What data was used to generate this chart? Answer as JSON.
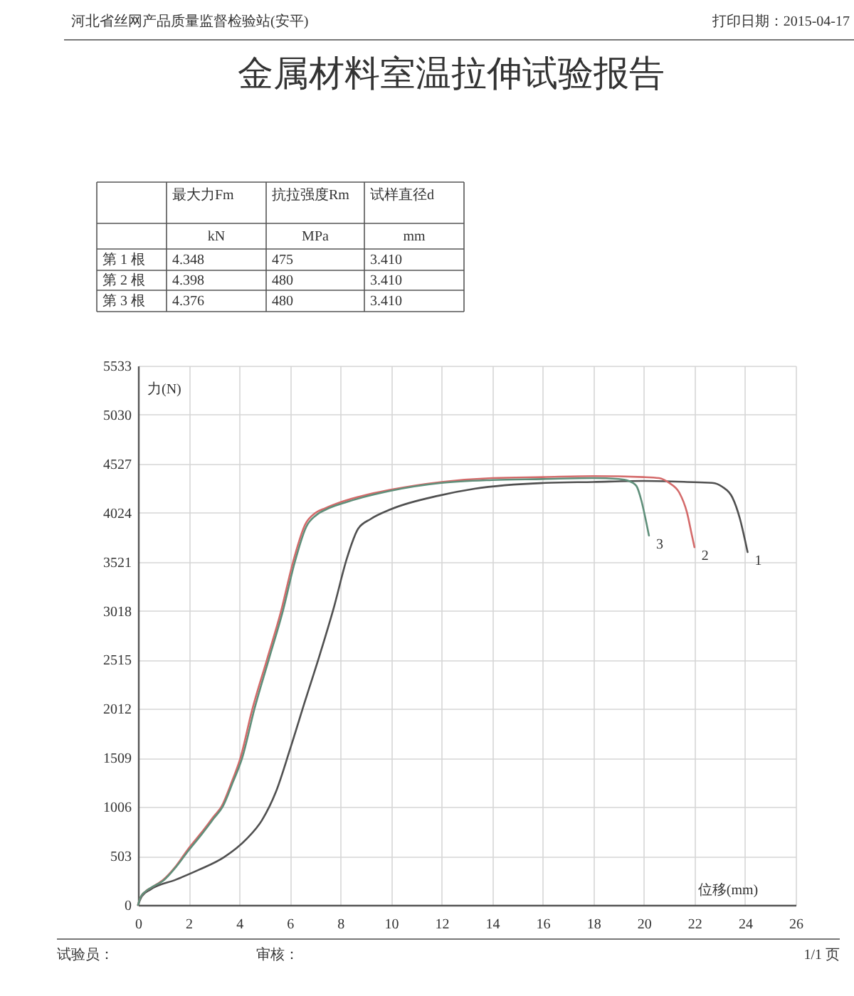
{
  "chart_data": {
    "type": "line",
    "title": "金属材料室温拉伸试验报告",
    "xlabel": "位移(mm)",
    "ylabel": "力(N)",
    "annotations": [
      "河北省丝网产品质量监督检验站(安平)",
      "打印日期：2015-04-17",
      "最大力Fm",
      "抗拉强度Rm",
      "试样直径d",
      "kN",
      "MPa",
      "mm",
      "第 1 根",
      "4.348",
      "475",
      "3.410",
      "第 2 根",
      "4.398",
      "480",
      "3.410",
      "第 3 根",
      "4.376",
      "480",
      "3.410",
      "试验员：",
      "审核：",
      "1/1 页"
    ],
    "xlim": [
      0,
      26
    ],
    "ylim": [
      0,
      5533
    ],
    "xticks": [
      0,
      2,
      4,
      6,
      8,
      10,
      12,
      14,
      16,
      18,
      20,
      22,
      24,
      26
    ],
    "yticks": [
      0,
      503,
      1006,
      1509,
      2012,
      2515,
      3018,
      3521,
      4024,
      4527,
      5030,
      5533
    ],
    "grid": true,
    "line_style": "solid",
    "series": [
      {
        "name": "1",
        "color": "#505050",
        "x": [
          0,
          0.15,
          0.5,
          1.5,
          2.4,
          3.4,
          4.3,
          4.9,
          5.45,
          6.0,
          6.6,
          7.2,
          7.75,
          8.25,
          8.7,
          9.2,
          10,
          11.9,
          13.3,
          16.1,
          18,
          20,
          21.7,
          22.7,
          23.1,
          23.5,
          23.8,
          24.0,
          24.1
        ],
        "values": [
          0,
          90,
          160,
          260,
          360,
          490,
          680,
          870,
          1160,
          1590,
          2090,
          2580,
          3060,
          3550,
          3860,
          3960,
          4060,
          4200,
          4270,
          4330,
          4340,
          4350,
          4340,
          4330,
          4290,
          4180,
          3960,
          3740,
          3620
        ]
      },
      {
        "name": "2",
        "color": "#d46a6a",
        "x": [
          0,
          0.1,
          0.3,
          0.6,
          1.0,
          1.5,
          2.0,
          2.5,
          3.0,
          3.3,
          3.7,
          4.05,
          4.5,
          5.1,
          5.65,
          6.13,
          6.6,
          7.0,
          7.4,
          8.1,
          10,
          12,
          14,
          16,
          18,
          20,
          20.6,
          21.0,
          21.4,
          21.7,
          21.9,
          22.0
        ],
        "values": [
          0,
          80,
          140,
          190,
          260,
          400,
          580,
          740,
          910,
          1010,
          1260,
          1510,
          1990,
          2520,
          3010,
          3520,
          3900,
          4020,
          4070,
          4140,
          4260,
          4340,
          4380,
          4390,
          4400,
          4390,
          4380,
          4330,
          4230,
          4030,
          3790,
          3670
        ]
      },
      {
        "name": "3",
        "color": "#5f8f7a",
        "x": [
          0,
          0.1,
          0.3,
          0.6,
          1.0,
          1.5,
          2.0,
          2.5,
          3.0,
          3.35,
          3.75,
          4.12,
          4.6,
          5.17,
          5.72,
          6.2,
          6.65,
          7.05,
          7.45,
          8.2,
          10,
          12,
          14,
          16,
          18,
          19.0,
          19.4,
          19.7,
          19.9,
          20.05,
          20.2
        ],
        "values": [
          0,
          80,
          140,
          190,
          250,
          390,
          560,
          720,
          890,
          1010,
          1260,
          1510,
          2010,
          2520,
          3010,
          3520,
          3880,
          4000,
          4060,
          4130,
          4250,
          4330,
          4360,
          4370,
          4380,
          4370,
          4350,
          4300,
          4150,
          3980,
          3790
        ]
      }
    ]
  }
}
